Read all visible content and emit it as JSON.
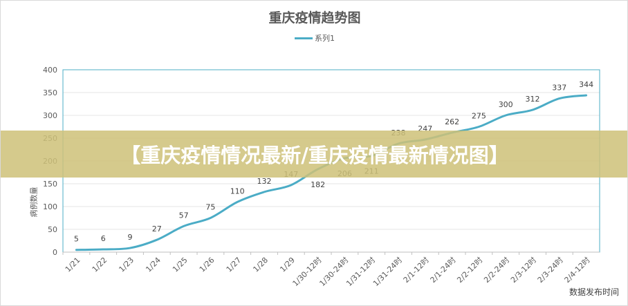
{
  "banner": {
    "text": "【重庆疫情情况最新/重庆疫情最新情况图】"
  },
  "chart_data": {
    "type": "line",
    "title": "重庆疫情趋势图",
    "ylabel": "病例数量",
    "xlabel": "数据发布时间",
    "ylim": [
      0,
      400
    ],
    "yticks": [
      0,
      50,
      100,
      150,
      200,
      250,
      300,
      350,
      400
    ],
    "grid": true,
    "legend": "top",
    "line_color": "#4bacc6",
    "categories": [
      "1/21",
      "1/22",
      "1/23",
      "1/24",
      "1/25",
      "1/26",
      "1/27",
      "1/28",
      "1/29",
      "1/30-12时",
      "1/30-24时",
      "1/31-12时",
      "1/31-24时",
      "2/1-12时",
      "2/1-24时",
      "2/2-12时",
      "2/2-24时",
      "2/3-12时",
      "2/3-24时",
      "2/4-12时"
    ],
    "series": [
      {
        "name": "系列1",
        "values": [
          5,
          6,
          9,
          27,
          57,
          75,
          110,
          132,
          147,
          182,
          206,
          211,
          238,
          247,
          262,
          275,
          300,
          312,
          337,
          344
        ]
      }
    ]
  }
}
